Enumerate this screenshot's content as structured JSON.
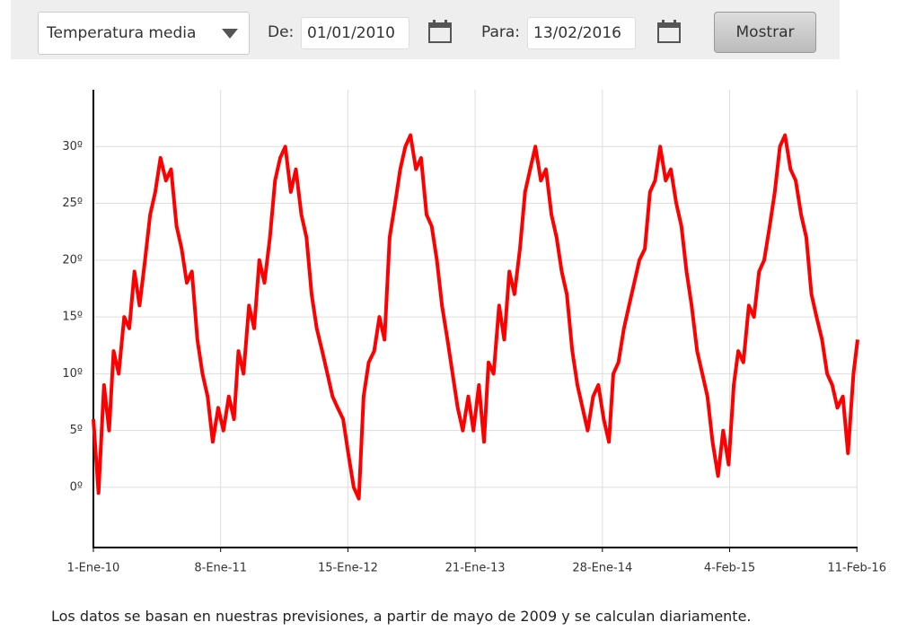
{
  "controls": {
    "metric_select": "Temperatura media",
    "from_label": "De:",
    "from_date": "01/01/2010",
    "to_label": "Para:",
    "to_date": "13/02/2016",
    "button": "Mostrar"
  },
  "footnote": "Los datos se basan en nuestras previsiones, a partir de mayo de 2009 y se calculan diariamente.",
  "chart_data": {
    "type": "line",
    "color": "#ff0000",
    "grid": true,
    "xlim": [
      "2010-01-01",
      "2016-02-13"
    ],
    "xticks": [
      {
        "value": "2010-01-01",
        "label": "1-Ene-10"
      },
      {
        "value": "2011-01-08",
        "label": "8-Ene-11"
      },
      {
        "value": "2012-01-15",
        "label": "15-Ene-12"
      },
      {
        "value": "2013-01-21",
        "label": "21-Ene-13"
      },
      {
        "value": "2014-01-28",
        "label": "28-Ene-14"
      },
      {
        "value": "2015-02-04",
        "label": "4-Feb-15"
      },
      {
        "value": "2016-02-11",
        "label": "11-Feb-16"
      }
    ],
    "ylim": [
      -5.3,
      35
    ],
    "yticks": [
      {
        "value": 0,
        "label": "0º"
      },
      {
        "value": 5,
        "label": "5º"
      },
      {
        "value": 10,
        "label": "10º"
      },
      {
        "value": 15,
        "label": "15º"
      },
      {
        "value": 20,
        "label": "20º"
      },
      {
        "value": 25,
        "label": "25º"
      },
      {
        "value": 30,
        "label": "30º"
      }
    ],
    "x": [
      "2010-01-01",
      "2010-01-16",
      "2010-02-01",
      "2010-02-16",
      "2010-03-01",
      "2010-03-16",
      "2010-04-01",
      "2010-04-16",
      "2010-05-01",
      "2010-05-16",
      "2010-06-01",
      "2010-06-16",
      "2010-07-01",
      "2010-07-16",
      "2010-08-01",
      "2010-08-16",
      "2010-09-01",
      "2010-09-16",
      "2010-10-01",
      "2010-10-16",
      "2010-11-01",
      "2010-11-16",
      "2010-12-01",
      "2010-12-16",
      "2011-01-01",
      "2011-01-16",
      "2011-02-01",
      "2011-02-16",
      "2011-03-01",
      "2011-03-16",
      "2011-04-01",
      "2011-04-16",
      "2011-05-01",
      "2011-05-16",
      "2011-06-01",
      "2011-06-16",
      "2011-07-01",
      "2011-07-16",
      "2011-08-01",
      "2011-08-16",
      "2011-09-01",
      "2011-09-16",
      "2011-10-01",
      "2011-10-16",
      "2011-11-01",
      "2011-11-16",
      "2011-12-01",
      "2011-12-16",
      "2012-01-01",
      "2012-01-16",
      "2012-02-01",
      "2012-02-16",
      "2012-03-01",
      "2012-03-16",
      "2012-04-01",
      "2012-04-16",
      "2012-05-01",
      "2012-05-16",
      "2012-06-01",
      "2012-06-16",
      "2012-07-01",
      "2012-07-16",
      "2012-08-01",
      "2012-08-16",
      "2012-09-01",
      "2012-09-16",
      "2012-10-01",
      "2012-10-16",
      "2012-11-01",
      "2012-11-16",
      "2012-12-01",
      "2012-12-16",
      "2013-01-01",
      "2013-01-16",
      "2013-02-01",
      "2013-02-16",
      "2013-03-01",
      "2013-03-16",
      "2013-04-01",
      "2013-04-16",
      "2013-05-01",
      "2013-05-16",
      "2013-06-01",
      "2013-06-16",
      "2013-07-01",
      "2013-07-16",
      "2013-08-01",
      "2013-08-16",
      "2013-09-01",
      "2013-09-16",
      "2013-10-01",
      "2013-10-16",
      "2013-11-01",
      "2013-11-16",
      "2013-12-01",
      "2013-12-16",
      "2014-01-01",
      "2014-01-16",
      "2014-02-01",
      "2014-02-16",
      "2014-03-01",
      "2014-03-16",
      "2014-04-01",
      "2014-04-16",
      "2014-05-01",
      "2014-05-16",
      "2014-06-01",
      "2014-06-16",
      "2014-07-01",
      "2014-07-16",
      "2014-08-01",
      "2014-08-16",
      "2014-09-01",
      "2014-09-16",
      "2014-10-01",
      "2014-10-16",
      "2014-11-01",
      "2014-11-16",
      "2014-12-01",
      "2014-12-16",
      "2015-01-01",
      "2015-01-16",
      "2015-02-01",
      "2015-02-16",
      "2015-03-01",
      "2015-03-16",
      "2015-04-01",
      "2015-04-16",
      "2015-05-01",
      "2015-05-16",
      "2015-06-01",
      "2015-06-16",
      "2015-07-01",
      "2015-07-16",
      "2015-08-01",
      "2015-08-16",
      "2015-09-01",
      "2015-09-16",
      "2015-10-01",
      "2015-10-16",
      "2015-11-01",
      "2015-11-16",
      "2015-12-01",
      "2015-12-16",
      "2016-01-01",
      "2016-01-16",
      "2016-02-01",
      "2016-02-13"
    ],
    "values": [
      6,
      -0.5,
      9,
      5,
      12,
      10,
      15,
      14,
      19,
      16,
      20,
      24,
      26,
      29,
      27,
      28,
      23,
      21,
      18,
      19,
      13,
      10,
      8,
      4,
      7,
      5,
      8,
      6,
      12,
      10,
      16,
      14,
      20,
      18,
      22,
      27,
      29,
      30,
      26,
      28,
      24,
      22,
      17,
      14,
      12,
      10,
      8,
      7,
      6,
      3,
      0,
      -1,
      8,
      11,
      12,
      15,
      13,
      22,
      25,
      28,
      30,
      31,
      28,
      29,
      24,
      23,
      20,
      16,
      13,
      10,
      7,
      5,
      8,
      5,
      9,
      4,
      11,
      10,
      16,
      13,
      19,
      17,
      21,
      26,
      28,
      30,
      27,
      28,
      24,
      22,
      19,
      17,
      12,
      9,
      7,
      5,
      8,
      9,
      6,
      4,
      10,
      11,
      14,
      16,
      18,
      20,
      21,
      26,
      27,
      30,
      27,
      28,
      25,
      23,
      19,
      16,
      12,
      10,
      8,
      4,
      1,
      5,
      2,
      9,
      12,
      11,
      16,
      15,
      19,
      20,
      23,
      26,
      30,
      31,
      28,
      27,
      24,
      22,
      17,
      15,
      13,
      10,
      9,
      7,
      8,
      3,
      10,
      13
    ]
  }
}
